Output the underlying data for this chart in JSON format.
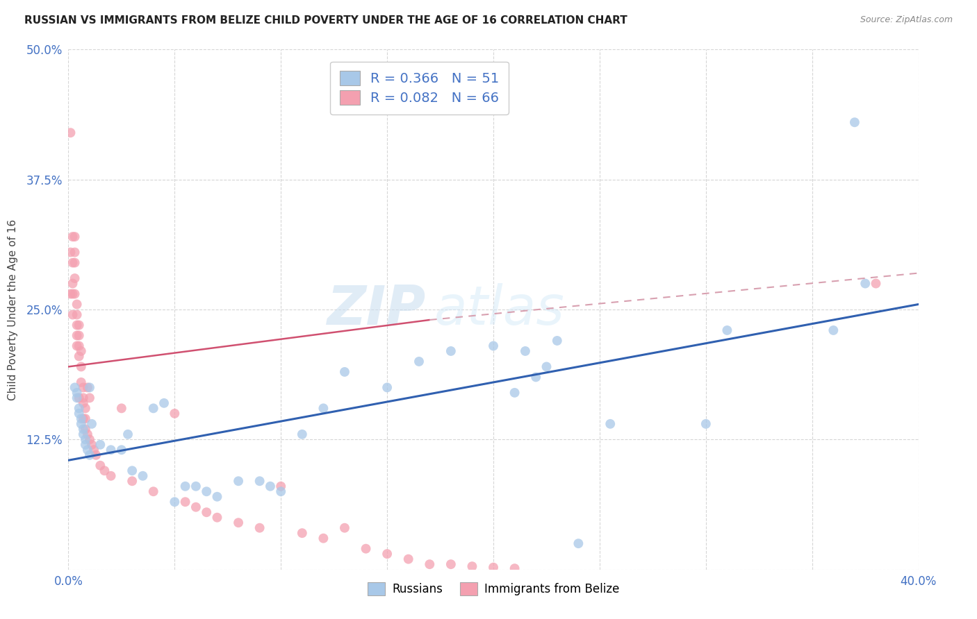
{
  "title": "RUSSIAN VS IMMIGRANTS FROM BELIZE CHILD POVERTY UNDER THE AGE OF 16 CORRELATION CHART",
  "source": "Source: ZipAtlas.com",
  "ylabel": "Child Poverty Under the Age of 16",
  "xlim": [
    0.0,
    0.4
  ],
  "ylim": [
    0.0,
    0.5
  ],
  "xticks": [
    0.0,
    0.05,
    0.1,
    0.15,
    0.2,
    0.25,
    0.3,
    0.35,
    0.4
  ],
  "xticklabels": [
    "0.0%",
    "",
    "",
    "",
    "",
    "",
    "",
    "",
    "40.0%"
  ],
  "yticks": [
    0.0,
    0.125,
    0.25,
    0.375,
    0.5
  ],
  "yticklabels": [
    "",
    "12.5%",
    "25.0%",
    "37.5%",
    "50.0%"
  ],
  "blue_R": 0.366,
  "blue_N": 51,
  "pink_R": 0.082,
  "pink_N": 66,
  "blue_color": "#a8c8e8",
  "pink_color": "#f4a0b0",
  "blue_line_color": "#3060b0",
  "pink_line_color": "#d05070",
  "pink_dash_color": "#d8a0b0",
  "watermark_zip": "ZIP",
  "watermark_atlas": "atlas",
  "blue_scatter_x": [
    0.003,
    0.004,
    0.004,
    0.005,
    0.005,
    0.006,
    0.006,
    0.007,
    0.007,
    0.008,
    0.008,
    0.009,
    0.01,
    0.01,
    0.011,
    0.015,
    0.02,
    0.025,
    0.028,
    0.03,
    0.035,
    0.04,
    0.045,
    0.05,
    0.055,
    0.06,
    0.065,
    0.07,
    0.08,
    0.09,
    0.095,
    0.1,
    0.11,
    0.12,
    0.13,
    0.15,
    0.165,
    0.18,
    0.2,
    0.21,
    0.215,
    0.22,
    0.225,
    0.23,
    0.24,
    0.255,
    0.3,
    0.31,
    0.36,
    0.37,
    0.375
  ],
  "blue_scatter_y": [
    0.175,
    0.17,
    0.165,
    0.155,
    0.15,
    0.145,
    0.14,
    0.135,
    0.13,
    0.125,
    0.12,
    0.115,
    0.11,
    0.175,
    0.14,
    0.12,
    0.115,
    0.115,
    0.13,
    0.095,
    0.09,
    0.155,
    0.16,
    0.065,
    0.08,
    0.08,
    0.075,
    0.07,
    0.085,
    0.085,
    0.08,
    0.075,
    0.13,
    0.155,
    0.19,
    0.175,
    0.2,
    0.21,
    0.215,
    0.17,
    0.21,
    0.185,
    0.195,
    0.22,
    0.025,
    0.14,
    0.14,
    0.23,
    0.23,
    0.43,
    0.275
  ],
  "pink_scatter_x": [
    0.001,
    0.001,
    0.001,
    0.002,
    0.002,
    0.002,
    0.002,
    0.002,
    0.003,
    0.003,
    0.003,
    0.003,
    0.003,
    0.004,
    0.004,
    0.004,
    0.004,
    0.004,
    0.005,
    0.005,
    0.005,
    0.005,
    0.005,
    0.006,
    0.006,
    0.006,
    0.007,
    0.007,
    0.007,
    0.007,
    0.008,
    0.008,
    0.008,
    0.009,
    0.009,
    0.01,
    0.01,
    0.011,
    0.012,
    0.013,
    0.015,
    0.017,
    0.02,
    0.025,
    0.03,
    0.04,
    0.05,
    0.055,
    0.06,
    0.065,
    0.07,
    0.08,
    0.09,
    0.1,
    0.11,
    0.12,
    0.13,
    0.14,
    0.15,
    0.16,
    0.17,
    0.18,
    0.19,
    0.2,
    0.21,
    0.38
  ],
  "pink_scatter_y": [
    0.42,
    0.305,
    0.265,
    0.32,
    0.295,
    0.275,
    0.265,
    0.245,
    0.32,
    0.305,
    0.295,
    0.28,
    0.265,
    0.255,
    0.245,
    0.235,
    0.225,
    0.215,
    0.235,
    0.225,
    0.215,
    0.205,
    0.165,
    0.21,
    0.195,
    0.18,
    0.175,
    0.165,
    0.16,
    0.145,
    0.155,
    0.145,
    0.135,
    0.175,
    0.13,
    0.165,
    0.125,
    0.12,
    0.115,
    0.11,
    0.1,
    0.095,
    0.09,
    0.155,
    0.085,
    0.075,
    0.15,
    0.065,
    0.06,
    0.055,
    0.05,
    0.045,
    0.04,
    0.08,
    0.035,
    0.03,
    0.04,
    0.02,
    0.015,
    0.01,
    0.005,
    0.005,
    0.003,
    0.002,
    0.001,
    0.275
  ]
}
